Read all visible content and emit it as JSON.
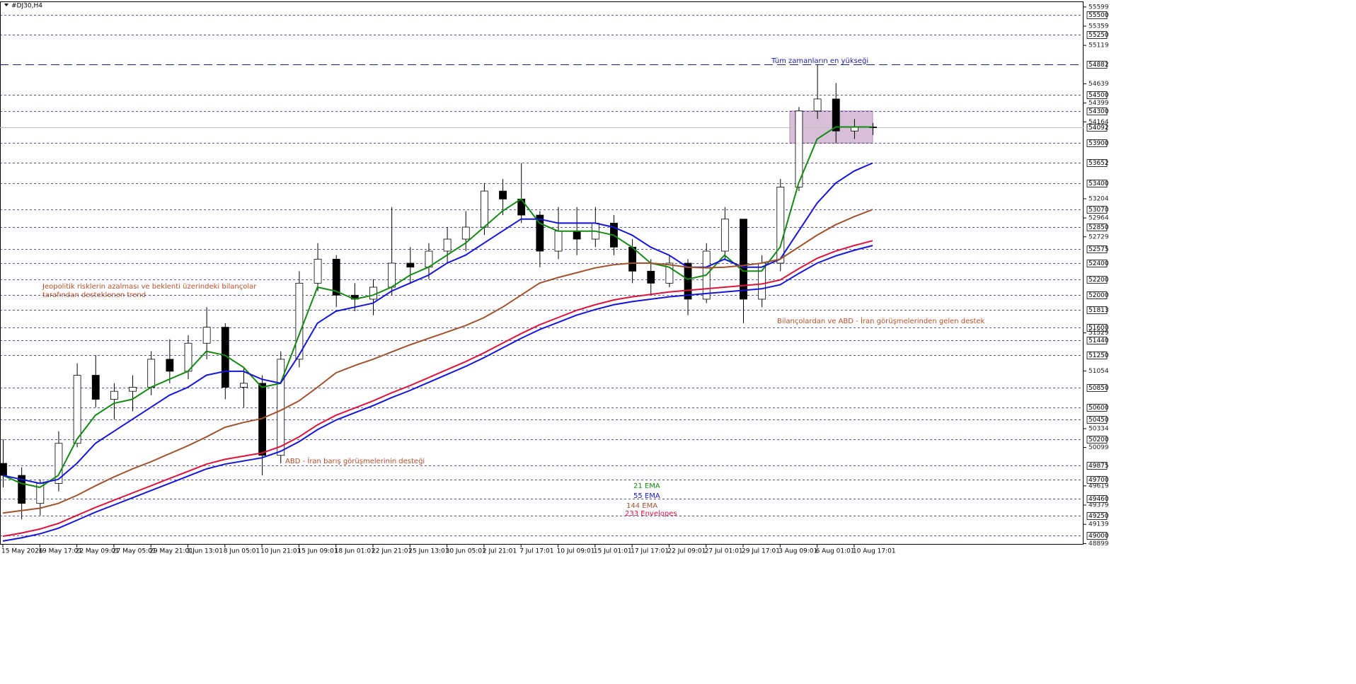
{
  "chart_data": {
    "type": "candlestick",
    "title": "#DJ30,H4",
    "ylim": [
      48885,
      55668
    ],
    "yticks": [
      55599,
      55359,
      55119,
      54639,
      54399,
      54164,
      53204,
      52964,
      52729,
      51529,
      51054,
      50334,
      50099,
      49619,
      49379,
      49139,
      48899
    ],
    "levels": [
      55500,
      55250,
      54500,
      54300,
      53900,
      53652,
      53400,
      53070,
      52850,
      52575,
      52400,
      52200,
      52000,
      51813,
      51600,
      51440,
      51250,
      50850,
      50600,
      50450,
      50200,
      49875,
      49700,
      49460,
      49250,
      49000
    ],
    "all_time_high": 54882,
    "current_price": 54092,
    "zone": [
      53900,
      54300
    ],
    "xticks": [
      "15 May 2026",
      "19 May 17:01",
      "22 May 09:01",
      "27 May 05:01",
      "29 May 21:01",
      "3 Jun 13:01",
      "8 Jun 05:01",
      "10 Jun 21:01",
      "15 Jun 09:01",
      "18 Jun 01:01",
      "22 Jun 21:01",
      "25 Jun 13:01",
      "30 Jun 05:01",
      "2 Jul 21:01",
      "7 Jul 17:01",
      "10 Jul 09:01",
      "15 Jul 01:01",
      "17 Jul 17:01",
      "22 Jul 09:01",
      "27 Jul 01:01",
      "29 Jul 17:01",
      "3 Aug 09:01",
      "6 Aug 01:01",
      "10 Aug 17:01"
    ],
    "open": [
      49900,
      49750,
      49400,
      49650,
      50150,
      51000,
      50700,
      50800,
      50850,
      51200,
      51050,
      51400,
      51600,
      50850,
      50900,
      50000,
      51200,
      52150,
      52450,
      52000,
      51950,
      52100,
      52400,
      52350,
      52550,
      52700,
      52850,
      53300,
      53200,
      53000,
      52550,
      52800,
      52700,
      52900,
      52600,
      52300,
      52150,
      52400,
      51950,
      52550,
      52950,
      51950,
      52400,
      53350,
      54300,
      54450,
      54050,
      54100
    ],
    "high": [
      50200,
      49850,
      49700,
      50300,
      51150,
      51250,
      50900,
      51000,
      51300,
      51450,
      51500,
      51850,
      51650,
      51100,
      51000,
      51300,
      52300,
      52650,
      52500,
      52150,
      52200,
      53100,
      52600,
      52650,
      52850,
      53050,
      53400,
      53450,
      53650,
      53050,
      53100,
      53100,
      53100,
      53000,
      52700,
      52450,
      52500,
      52450,
      52650,
      53100,
      52950,
      52500,
      53450,
      54350,
      54882,
      54650,
      54200,
      54150
    ],
    "low": [
      49600,
      49200,
      49250,
      49550,
      50100,
      50600,
      50450,
      50550,
      50750,
      50900,
      50950,
      51200,
      50700,
      50600,
      49750,
      49900,
      51100,
      52050,
      51850,
      51800,
      51750,
      52000,
      52150,
      52200,
      52400,
      52550,
      52750,
      53000,
      52900,
      52350,
      52450,
      52500,
      52600,
      52500,
      52150,
      52000,
      52100,
      51750,
      51900,
      52450,
      51650,
      51850,
      52300,
      53300,
      54200,
      53900,
      53950,
      54000
    ],
    "close": [
      49750,
      49400,
      49650,
      50150,
      51000,
      50700,
      50800,
      50850,
      51200,
      51050,
      51400,
      51600,
      50850,
      50900,
      50000,
      51200,
      52150,
      52450,
      52000,
      51950,
      52100,
      52400,
      52350,
      52550,
      52700,
      52850,
      53300,
      53200,
      53000,
      52550,
      52800,
      52700,
      52900,
      52600,
      52300,
      52150,
      52400,
      51950,
      52550,
      52950,
      51950,
      52400,
      53350,
      54300,
      54450,
      54050,
      54100,
      54092
    ],
    "series": [
      {
        "name": "21 EMA",
        "color": "#138a13",
        "values": [
          49750,
          49650,
          49600,
          49750,
          50200,
          50500,
          50650,
          50700,
          50850,
          50950,
          51050,
          51300,
          51250,
          51100,
          50850,
          50900,
          51500,
          52100,
          52050,
          51950,
          52000,
          52100,
          52250,
          52350,
          52500,
          52650,
          52850,
          53050,
          53200,
          52900,
          52800,
          52800,
          52800,
          52750,
          52600,
          52400,
          52350,
          52200,
          52250,
          52500,
          52300,
          52300,
          52600,
          53400,
          53950,
          54100,
          54100,
          54100
        ]
      },
      {
        "name": "55 EMA",
        "color": "#1515d8",
        "values": [
          49750,
          49700,
          49650,
          49700,
          49900,
          50150,
          50300,
          50450,
          50600,
          50750,
          50850,
          51000,
          51050,
          51050,
          50950,
          50900,
          51250,
          51650,
          51800,
          51850,
          51900,
          52050,
          52150,
          52250,
          52400,
          52500,
          52650,
          52800,
          52950,
          52950,
          52900,
          52900,
          52900,
          52850,
          52750,
          52600,
          52500,
          52350,
          52350,
          52450,
          52350,
          52350,
          52450,
          52800,
          53150,
          53400,
          53550,
          53650
        ]
      },
      {
        "name": "144 EMA",
        "color": "#a0522d",
        "values": [
          49280,
          49310,
          49340,
          49400,
          49500,
          49620,
          49730,
          49830,
          49920,
          50020,
          50120,
          50230,
          50350,
          50410,
          50460,
          50560,
          50680,
          50850,
          51030,
          51120,
          51200,
          51290,
          51380,
          51460,
          51540,
          51620,
          51720,
          51850,
          52000,
          52150,
          52220,
          52280,
          52340,
          52380,
          52400,
          52400,
          52380,
          52350,
          52340,
          52350,
          52370,
          52400,
          52450,
          52600,
          52750,
          52880,
          52980,
          53070
        ]
      },
      {
        "name": "233 Envelopes",
        "color": "#dc143c",
        "values": [
          48990,
          49030,
          49080,
          49150,
          49250,
          49350,
          49440,
          49530,
          49620,
          49710,
          49800,
          49890,
          49950,
          49990,
          50030,
          50110,
          50230,
          50380,
          50500,
          50590,
          50680,
          50780,
          50870,
          50970,
          51070,
          51170,
          51280,
          51400,
          51520,
          51630,
          51720,
          51810,
          51880,
          51940,
          51980,
          52010,
          52040,
          52060,
          52080,
          52100,
          52120,
          52140,
          52190,
          52330,
          52460,
          52550,
          52620,
          52680
        ]
      },
      {
        "color": "#1515d8",
        "values": [
          48930,
          48970,
          49020,
          49090,
          49190,
          49290,
          49380,
          49470,
          49560,
          49650,
          49740,
          49830,
          49890,
          49930,
          49970,
          50050,
          50170,
          50320,
          50440,
          50530,
          50620,
          50720,
          50810,
          50910,
          51010,
          51110,
          51220,
          51340,
          51460,
          51570,
          51660,
          51750,
          51820,
          51880,
          51920,
          51950,
          51980,
          52000,
          52020,
          52040,
          52060,
          52080,
          52130,
          52270,
          52400,
          52490,
          52560,
          52620
        ]
      }
    ],
    "annotations": {
      "trend": [
        "Jeopolitik risklerin azalması ve beklenti üzerindeki bilançolar",
        "tarafından desteklenen trend"
      ],
      "support_earnings": "Bilançolardan ve ABD - İran görüşmelerinden gelen destek",
      "support_peace": "ABD - İran barış görüşmelerinin desteği",
      "ath": "Tüm zamanların en yükseği"
    }
  }
}
